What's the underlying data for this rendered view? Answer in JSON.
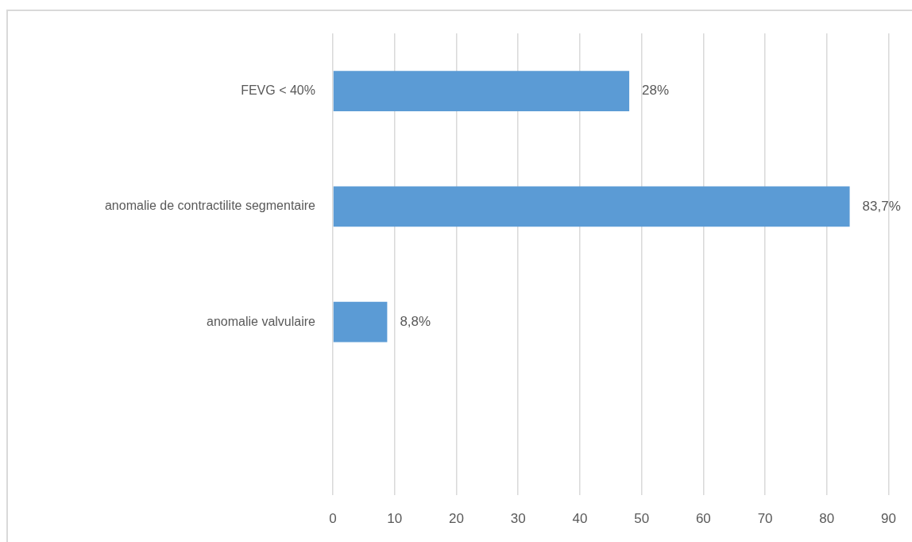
{
  "chart_data": {
    "type": "bar",
    "orientation": "horizontal",
    "categories": [
      "FEVG < 40%",
      "anomalie de contractilite segmentaire",
      "anomalie valvulaire",
      null
    ],
    "values": [
      48,
      83.7,
      8.8,
      null
    ],
    "color": "#5b9bd5",
    "value_labels": [
      null,
      "83,7%",
      "8,8%",
      null
    ],
    "annotations": [
      {
        "text": "28%",
        "x": 48,
        "y": "FEVG < 40%"
      }
    ],
    "xlim": [
      0,
      90
    ],
    "xticks": [
      0,
      10,
      20,
      30,
      40,
      50,
      60,
      70,
      80,
      90
    ],
    "grid": "x"
  }
}
